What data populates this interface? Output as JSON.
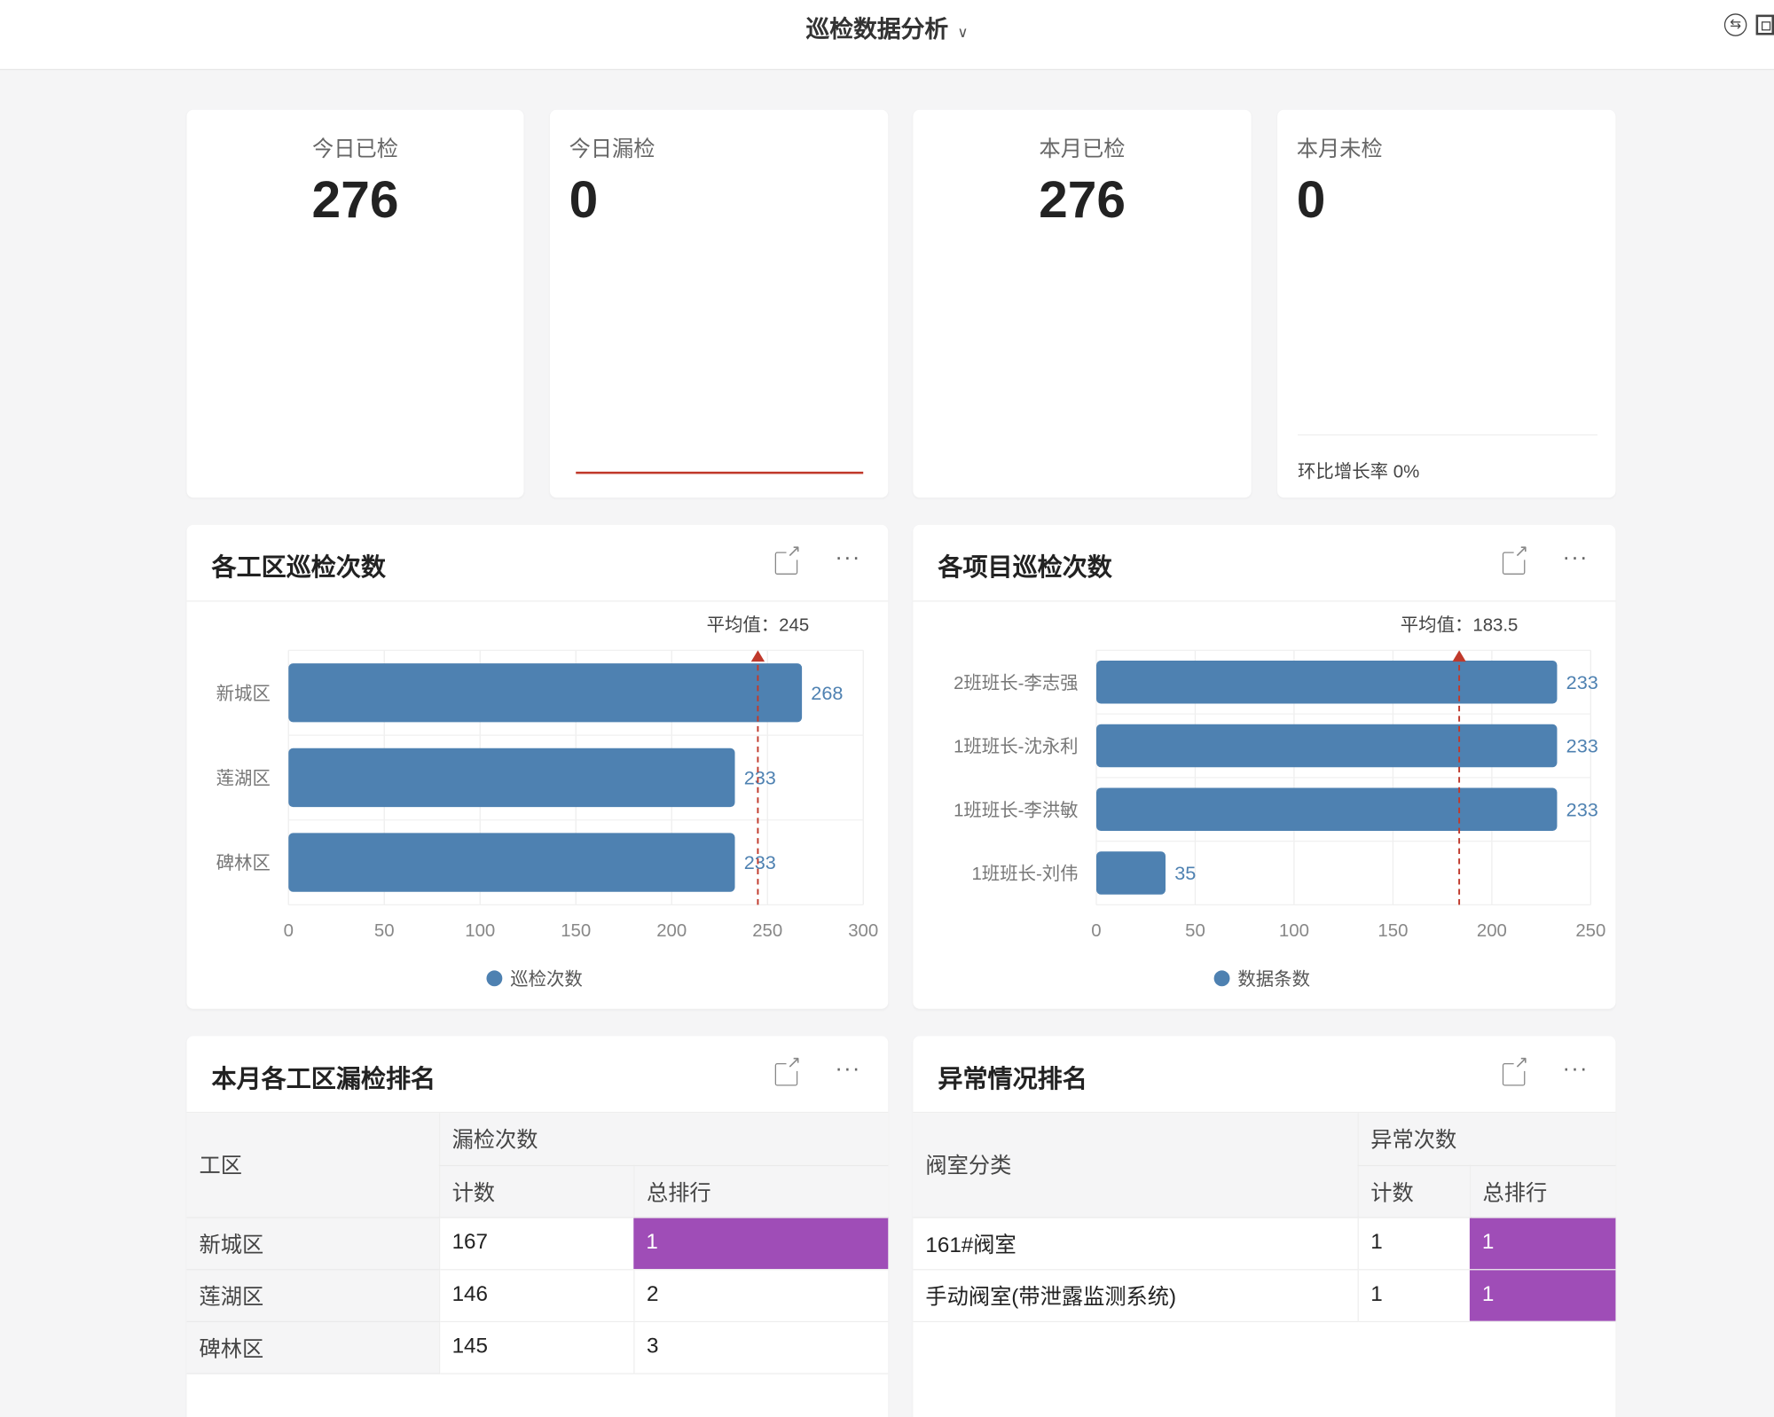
{
  "header": {
    "title": "巡检数据分析",
    "dropdown_icon": "chevron-down-icon",
    "icons": [
      "switch-icon",
      "exit-fullscreen-icon"
    ]
  },
  "stats": [
    {
      "label": "今日已检",
      "value": "276"
    },
    {
      "label": "今日漏检",
      "value": "0"
    },
    {
      "label": "本月已检",
      "value": "276"
    },
    {
      "label": "本月未检",
      "value": "0",
      "footer": "环比增长率 0%"
    }
  ],
  "chart_data": [
    {
      "type": "bar",
      "orientation": "horizontal",
      "title": "各工区巡检次数",
      "categories": [
        "新城区",
        "莲湖区",
        "碑林区"
      ],
      "series": [
        {
          "name": "巡检次数",
          "values": [
            268,
            233,
            233
          ]
        }
      ],
      "xlim": [
        0,
        300
      ],
      "ticks": [
        0,
        50,
        100,
        150,
        200,
        250,
        300
      ],
      "average": {
        "label": "平均值：245",
        "value": 245
      },
      "color": "#4e81b1",
      "avg_color": "#c0392b",
      "legend": "bottom",
      "grid": true
    },
    {
      "type": "bar",
      "orientation": "horizontal",
      "title": "各项目巡检次数",
      "categories": [
        "2班班长-李志强",
        "1班班长-沈永利",
        "1班班长-李洪敏",
        "1班班长-刘伟"
      ],
      "series": [
        {
          "name": "数据条数",
          "values": [
            233,
            233,
            233,
            35
          ]
        }
      ],
      "xlim": [
        0,
        250
      ],
      "ticks": [
        0,
        50,
        100,
        150,
        200,
        250
      ],
      "average": {
        "label": "平均值：183.5",
        "value": 183.5
      },
      "color": "#4e81b1",
      "avg_color": "#c0392b",
      "legend": "bottom",
      "grid": true
    }
  ],
  "tables": [
    {
      "title": "本月各工区漏检排名",
      "col1": "工区",
      "group": "漏检次数",
      "sub": [
        "计数",
        "总排行"
      ],
      "rows": [
        [
          "新城区",
          "167",
          "1"
        ],
        [
          "莲湖区",
          "146",
          "2"
        ],
        [
          "碑林区",
          "145",
          "3"
        ]
      ]
    },
    {
      "title": "异常情况排名",
      "col1": "阀室分类",
      "group": "异常次数",
      "sub": [
        "计数",
        "总排行"
      ],
      "rows": [
        [
          "161#阀室",
          "1",
          "1"
        ],
        [
          "手动阀室(带泄露监测系统)",
          "1",
          "1"
        ]
      ]
    }
  ],
  "highlight_color": "#9f4db7"
}
